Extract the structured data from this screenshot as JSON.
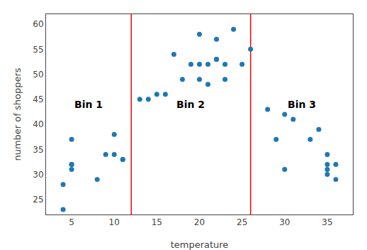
{
  "chart_data": {
    "type": "scatter",
    "x": [
      4,
      4,
      5,
      5,
      5,
      5,
      8,
      9,
      10,
      10,
      11,
      11,
      13,
      14,
      15,
      16,
      17,
      18,
      19,
      20,
      20,
      20,
      21,
      21,
      22,
      22,
      22,
      23,
      23,
      24,
      25,
      26,
      28,
      29,
      30,
      30,
      31,
      33,
      34,
      35,
      35,
      35,
      35,
      36,
      36
    ],
    "y": [
      23,
      28,
      31,
      32,
      32,
      37,
      29,
      34,
      34,
      38,
      33,
      33,
      45,
      45,
      46,
      46,
      54,
      49,
      52,
      49,
      52,
      58,
      48,
      52,
      53,
      57,
      53,
      49,
      52,
      59,
      52,
      55,
      43,
      37,
      31,
      42,
      41,
      37,
      39,
      32,
      30,
      31,
      34,
      29,
      32
    ],
    "color": "#1f77b4",
    "vlines": [
      {
        "x": 12,
        "color": "red"
      },
      {
        "x": 26,
        "color": "red"
      }
    ],
    "annotations": [
      {
        "text": "Bin 1",
        "x": 7,
        "y": 44
      },
      {
        "text": "Bin 2",
        "x": 19,
        "y": 44
      },
      {
        "text": "Bin 3",
        "x": 32,
        "y": 44
      }
    ],
    "xlabel": "temperature",
    "ylabel": "number of shoppers",
    "xlim": [
      2,
      38
    ],
    "ylim": [
      22,
      62
    ],
    "xticks": [
      5,
      10,
      15,
      20,
      25,
      30,
      35
    ],
    "yticks": [
      25,
      30,
      35,
      40,
      45,
      50,
      55,
      60
    ],
    "grid": false
  }
}
